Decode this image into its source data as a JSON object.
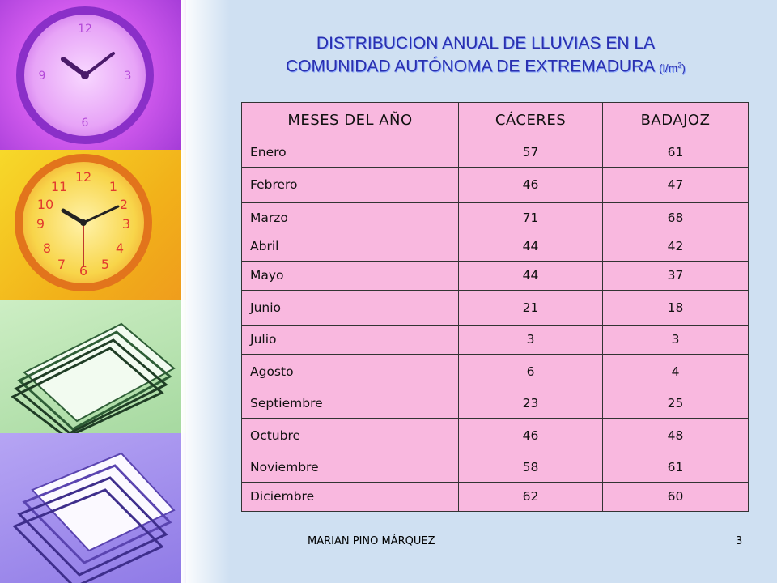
{
  "title": {
    "line1": "DISTRIBUCION ANUAL DE LLUVIAS EN LA",
    "line2": "COMUNIDAD AUTÓNOMA DE EXTREMADURA",
    "unit_prefix": "(l/m",
    "unit_sup": "2",
    "unit_suffix": ")"
  },
  "table": {
    "headers": [
      "MESES DEL AÑO",
      "CÁCERES",
      "BADAJOZ"
    ],
    "rows": [
      [
        "Enero",
        "57",
        "61"
      ],
      [
        "Febrero",
        "46",
        "47"
      ],
      [
        "Marzo",
        "71",
        "68"
      ],
      [
        "Abril",
        "44",
        "42"
      ],
      [
        "Mayo",
        "44",
        "37"
      ],
      [
        "Junio",
        "21",
        "18"
      ],
      [
        "Julio",
        "3",
        "3"
      ],
      [
        "Agosto",
        "6",
        "4"
      ],
      [
        "Septiembre",
        "23",
        "25"
      ],
      [
        "Octubre",
        "46",
        "48"
      ],
      [
        "Noviembre",
        "58",
        "61"
      ],
      [
        "Diciembre",
        "62",
        "60"
      ]
    ]
  },
  "footer": {
    "author": "MARIAN PINO MÁRQUEZ",
    "page_number": "3"
  },
  "colors": {
    "title": "#2a2fae",
    "table_fill": "#f9b8df",
    "background": "#cfe0f2"
  },
  "decorations": {
    "panels": [
      "purple-clock-icon",
      "yellow-clock-icon",
      "green-papers-icon",
      "violet-papers-icon"
    ]
  }
}
